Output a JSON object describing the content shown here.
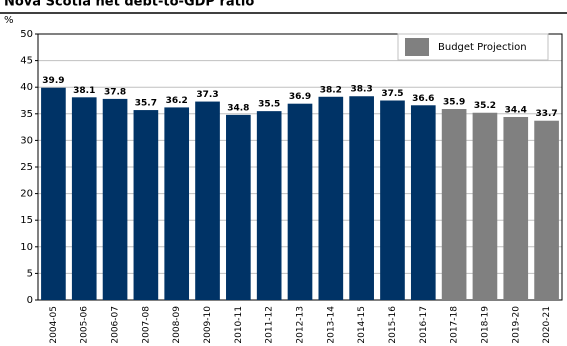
{
  "chart_data": {
    "type": "bar",
    "title": "Nova Scotia net debt-to-GDP ratio",
    "y_label": "%",
    "categories": [
      "2004-05",
      "2005-06",
      "2006-07",
      "2007-08",
      "2008-09",
      "2009-10",
      "2010-11",
      "2011-12",
      "2012-13",
      "2013-14",
      "2014-15",
      "2015-16",
      "2016-17",
      "2017-18",
      "2018-19",
      "2019-20",
      "2020-21"
    ],
    "values": [
      39.9,
      38.1,
      37.8,
      35.7,
      36.2,
      37.3,
      34.8,
      35.5,
      36.9,
      38.2,
      38.3,
      37.5,
      36.6,
      35.9,
      35.2,
      34.4,
      33.7
    ],
    "colors": [
      "#003366",
      "#003366",
      "#003366",
      "#003366",
      "#003366",
      "#003366",
      "#003366",
      "#003366",
      "#003366",
      "#003366",
      "#003366",
      "#003366",
      "#003366",
      "#808080",
      "#808080",
      "#808080",
      "#808080"
    ],
    "legend": {
      "label": "Budget Projection",
      "color": "#808080",
      "position": "upper right"
    },
    "ylim": [
      0,
      50
    ],
    "yticks": [
      0,
      5,
      10,
      15,
      20,
      25,
      30,
      35,
      40,
      45,
      50
    ],
    "grid": true
  }
}
